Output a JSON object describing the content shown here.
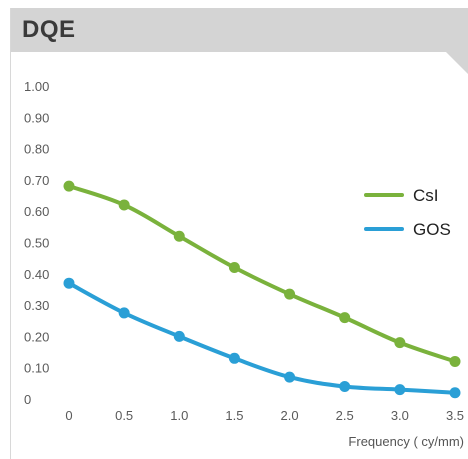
{
  "panel": {
    "title": "DQE",
    "header_color": "#d4d4d4"
  },
  "chart_data": {
    "type": "line",
    "title": "DQE",
    "xlabel": "Frequency ( cy/mm)",
    "ylabel": "",
    "x": [
      0,
      0.5,
      1.0,
      1.5,
      2.0,
      2.5,
      3.0,
      3.5
    ],
    "x_tick_labels": [
      "0",
      "0.5",
      "1.0",
      "1.5",
      "2.0",
      "2.5",
      "3.0",
      "3.5"
    ],
    "y_tick_labels": [
      "0",
      "0.10",
      "0.20",
      "0.30",
      "0.40",
      "0.50",
      "0.60",
      "0.70",
      "0.80",
      "0.90",
      "1.00"
    ],
    "xlim": [
      0,
      3.5
    ],
    "ylim": [
      0,
      1.0
    ],
    "grid": false,
    "legend_position": "right",
    "series": [
      {
        "name": "CsI",
        "color": "#7ab23c",
        "values": [
          0.68,
          0.62,
          0.52,
          0.42,
          0.335,
          0.26,
          0.18,
          0.12
        ]
      },
      {
        "name": "GOS",
        "color": "#2a9fd6",
        "values": [
          0.37,
          0.275,
          0.2,
          0.13,
          0.07,
          0.04,
          0.03,
          0.02
        ]
      }
    ]
  }
}
